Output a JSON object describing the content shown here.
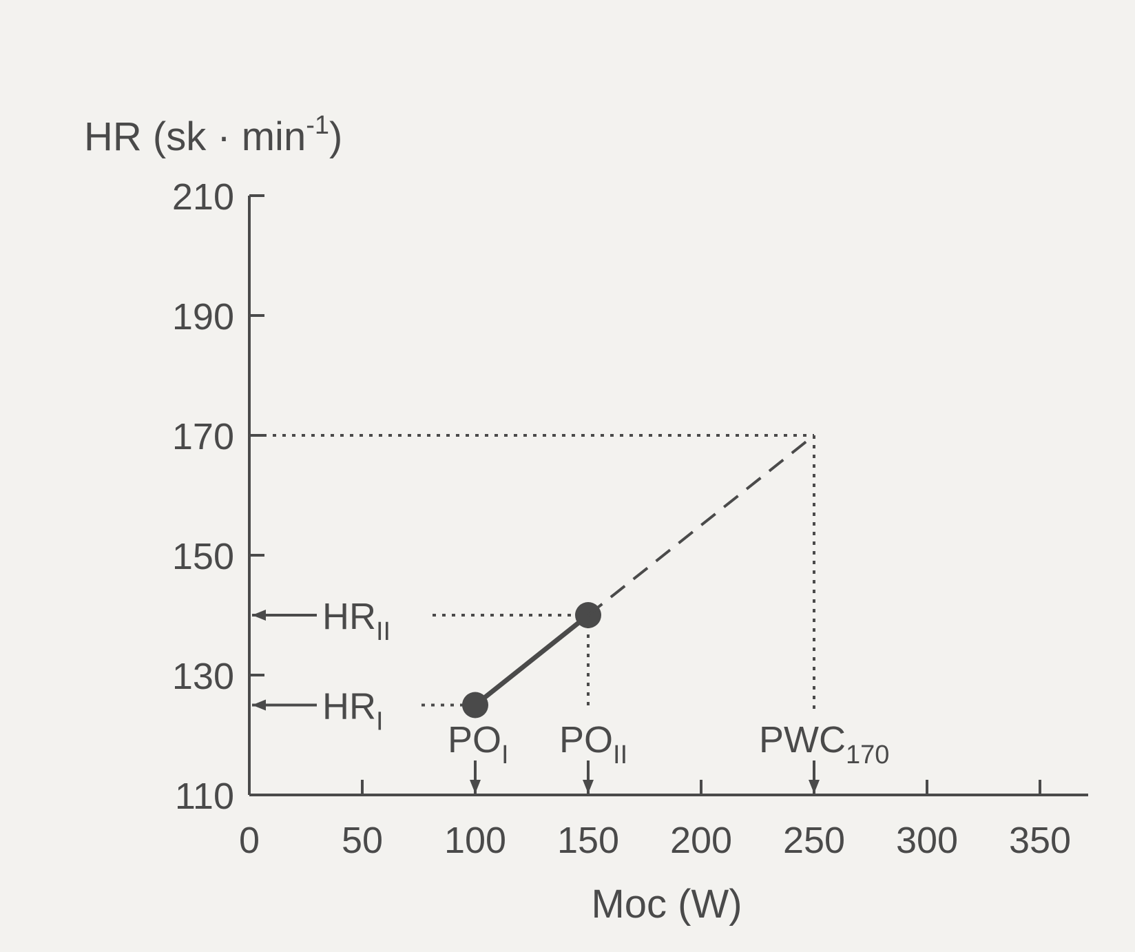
{
  "chart_data": {
    "type": "line",
    "ylabel": "HR (sk · min",
    "ylabel_sup": "-1",
    "ylabel_close": ")",
    "xlabel": "Moc (W)",
    "xlim": [
      0,
      350
    ],
    "ylim": [
      110,
      210
    ],
    "xticks": [
      0,
      50,
      100,
      150,
      200,
      250,
      300,
      350
    ],
    "yticks": [
      110,
      130,
      150,
      170,
      190,
      210
    ],
    "series": [
      {
        "style": "solid",
        "markers": true,
        "points": [
          [
            100,
            125
          ],
          [
            150,
            140
          ]
        ]
      },
      {
        "style": "dashed",
        "markers": false,
        "points": [
          [
            150,
            140
          ],
          [
            250,
            170
          ]
        ]
      }
    ],
    "reference_lines": {
      "hr_I_level": 125,
      "hr_II_level": 140,
      "target_hr": 170,
      "po_I": 100,
      "po_II": 150,
      "pwc": 250
    },
    "annotations": {
      "hr_I": {
        "main": "HR",
        "sub": "I"
      },
      "hr_II": {
        "main": "HR",
        "sub": "II"
      },
      "po_I": {
        "main": "PO",
        "sub": "I"
      },
      "po_II": {
        "main": "PO",
        "sub": "II"
      },
      "pwc": {
        "main": "PWC",
        "sub": "170"
      }
    },
    "grid": false,
    "colors": {
      "ink": "#4a4a4a",
      "background": "#f3f2ef"
    }
  }
}
